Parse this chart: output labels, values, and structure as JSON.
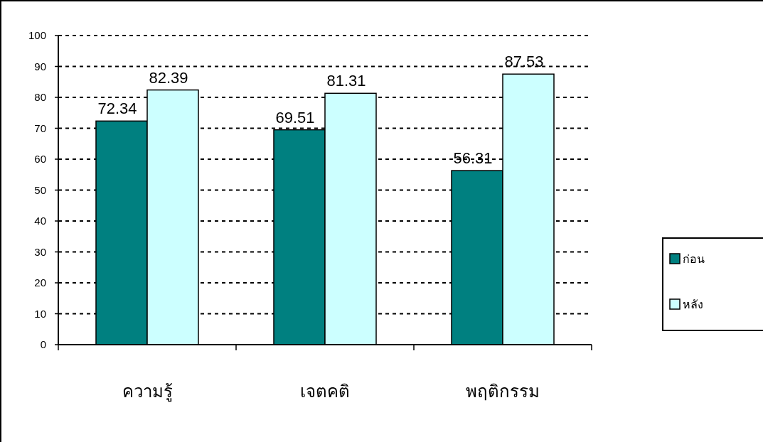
{
  "chart_data": {
    "type": "bar",
    "categories": [
      "ความรู้",
      "เจตคติ",
      "พฤติกรรม"
    ],
    "series": [
      {
        "name": "ก่อน",
        "color": "#008080",
        "values": [
          72.34,
          69.51,
          56.31
        ]
      },
      {
        "name": "หลัง",
        "color": "#ccffff",
        "values": [
          82.39,
          81.31,
          87.53
        ]
      }
    ],
    "ylim": [
      0,
      100
    ],
    "yticks": [
      0,
      10,
      20,
      30,
      40,
      50,
      60,
      70,
      80,
      90,
      100
    ],
    "grid": "y",
    "legend": "right",
    "data_labels": true
  }
}
